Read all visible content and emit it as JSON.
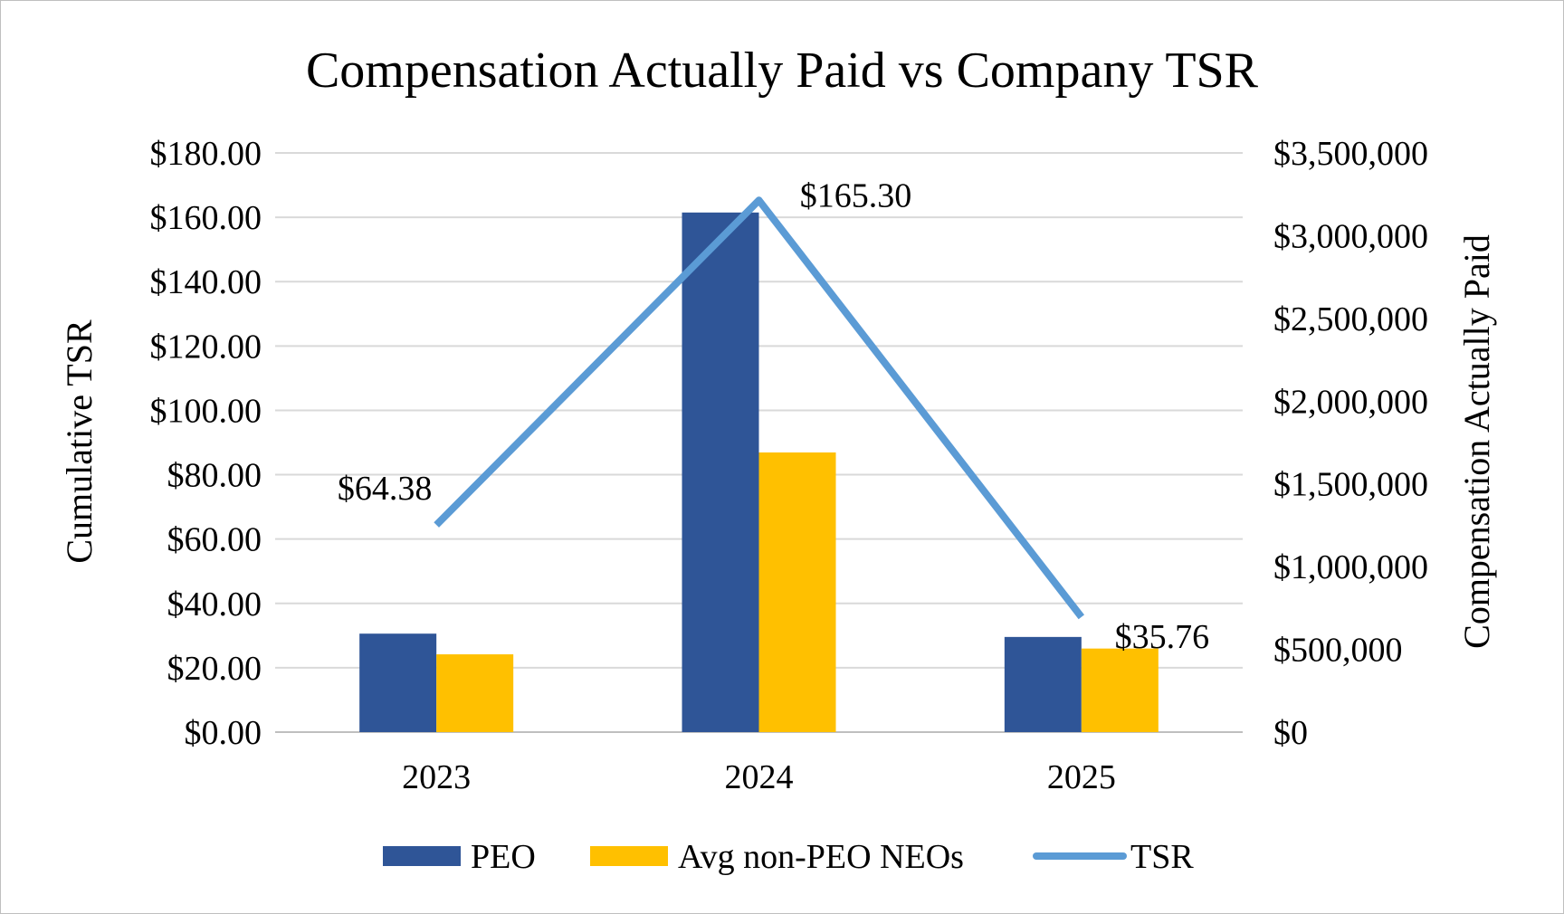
{
  "chart_data": {
    "type": "bar",
    "title": "Compensation Actually Paid vs Company TSR",
    "categories": [
      "2023",
      "2024",
      "2025"
    ],
    "series": [
      {
        "name": "PEO",
        "kind": "bar",
        "axis": "right",
        "color": "#2f5597",
        "values": [
          595000,
          3140000,
          575000
        ]
      },
      {
        "name": "Avg non-PEO NEOs",
        "kind": "bar",
        "axis": "right",
        "color": "#ffc000",
        "values": [
          470000,
          1690000,
          505000
        ]
      },
      {
        "name": "TSR",
        "kind": "line",
        "axis": "left",
        "color": "#5b9bd5",
        "values": [
          64.38,
          165.3,
          35.76
        ],
        "data_labels": [
          "$64.38",
          "$165.30",
          "$35.76"
        ]
      }
    ],
    "left_axis": {
      "label": "Cumulative TSR",
      "ylim": [
        0,
        180
      ],
      "ticks": [
        0,
        20,
        40,
        60,
        80,
        100,
        120,
        140,
        160,
        180
      ],
      "tick_labels": [
        "$0.00",
        "$20.00",
        "$40.00",
        "$60.00",
        "$80.00",
        "$100.00",
        "$120.00",
        "$140.00",
        "$160.00",
        "$180.00"
      ]
    },
    "right_axis": {
      "label": "Compensation Actually Paid",
      "ylim": [
        0,
        3500000
      ],
      "ticks": [
        0,
        500000,
        1000000,
        1500000,
        2000000,
        2500000,
        3000000,
        3500000
      ],
      "tick_labels": [
        "$0",
        "$500,000",
        "$1,000,000",
        "$1,500,000",
        "$2,000,000",
        "$2,500,000",
        "$3,000,000",
        "$3,500,000"
      ]
    },
    "grid": true,
    "legend": {
      "position": "bottom",
      "entries": [
        "PEO",
        "Avg non-PEO NEOs",
        "TSR"
      ]
    }
  }
}
